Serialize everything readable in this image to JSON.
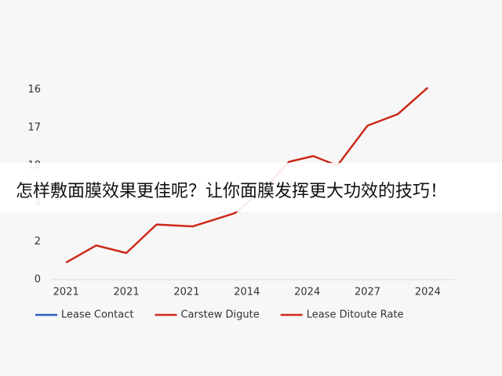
{
  "chart_data": {
    "type": "line",
    "x": [
      0,
      0.5,
      1,
      1.5,
      2.1,
      2.8,
      3.3,
      3.7,
      4.1,
      4.5,
      5,
      5.5,
      6
    ],
    "series": [
      {
        "color": "#cc2a1a",
        "values": [
          0.9,
          1.8,
          1.4,
          2.9,
          2.8,
          3.5,
          4.8,
          6.2,
          6.5,
          6.0,
          8.1,
          8.7,
          10.1
        ]
      }
    ],
    "xlim": [
      -0.25,
      6.45
    ],
    "xticks": [
      {
        "value": 0,
        "label": "2021"
      },
      {
        "value": 1,
        "label": "2021"
      },
      {
        "value": 2,
        "label": "2021"
      },
      {
        "value": 3,
        "label": "2014"
      },
      {
        "value": 4,
        "label": "2024"
      },
      {
        "value": 5,
        "label": "2027"
      },
      {
        "value": 6,
        "label": "2024"
      }
    ],
    "ylim": [
      0,
      11
    ],
    "yticks": [
      0,
      2,
      4,
      {
        "value": 6,
        "label": "18"
      },
      {
        "value": 8,
        "label": "17"
      },
      {
        "value": 10,
        "label": "16"
      }
    ],
    "legend": [
      {
        "label": "Lease Contact",
        "color": "#2a5fc4"
      },
      {
        "label": "Carstew Digute",
        "color": "#cc2a1a"
      },
      {
        "label": "Lease Ditoute Rate",
        "color": "#cc2a1a"
      }
    ]
  },
  "banner": {
    "text": "怎样敷面膜效果更佳呢？让你面膜发挥更大功效的技巧！"
  }
}
